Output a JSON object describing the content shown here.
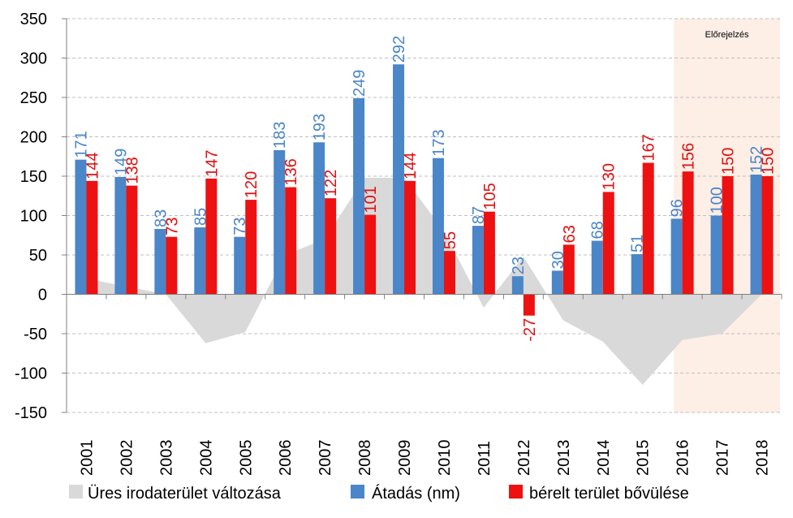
{
  "chart_data": {
    "type": "bar",
    "categories": [
      "2001",
      "2002",
      "2003",
      "2004",
      "2005",
      "2006",
      "2007",
      "2008",
      "2009",
      "2010",
      "2011",
      "2012",
      "2013",
      "2014",
      "2015",
      "2016",
      "2017",
      "2018"
    ],
    "series": [
      {
        "name": "Üres irodaterület változása",
        "type": "area",
        "color": "#d9d9d9",
        "values": [
          20,
          10,
          0,
          -62,
          -48,
          50,
          70,
          148,
          148,
          80,
          -17,
          48,
          -33,
          -60,
          -115,
          -58,
          -50,
          0
        ]
      },
      {
        "name": "Átadás (nm)",
        "type": "bar",
        "color": "#4a86c8",
        "values": [
          171,
          149,
          83,
          85,
          73,
          183,
          193,
          249,
          292,
          173,
          87,
          23,
          30,
          68,
          51,
          96,
          100,
          152
        ]
      },
      {
        "name": "bérelt terület bővülése",
        "type": "bar",
        "color": "#ee1111",
        "values": [
          144,
          138,
          73,
          147,
          120,
          136,
          122,
          101,
          144,
          55,
          105,
          -27,
          63,
          130,
          167,
          156,
          150,
          150
        ]
      }
    ],
    "ylim": [
      -150,
      350
    ],
    "yticks": [
      -150,
      -100,
      -50,
      0,
      50,
      100,
      150,
      200,
      250,
      300,
      350
    ],
    "grid": true,
    "legend": "bottom",
    "forecast_label": "Előrejelzés",
    "forecast_categories": [
      "2016",
      "2017",
      "2018"
    ],
    "forecast_color": "#fdeee6",
    "title": "",
    "xlabel": "",
    "ylabel": ""
  },
  "legend": {
    "area_label": "Üres irodaterület változása",
    "blue_label": "Átadás (nm)",
    "red_label": "bérelt terület bővülése"
  }
}
